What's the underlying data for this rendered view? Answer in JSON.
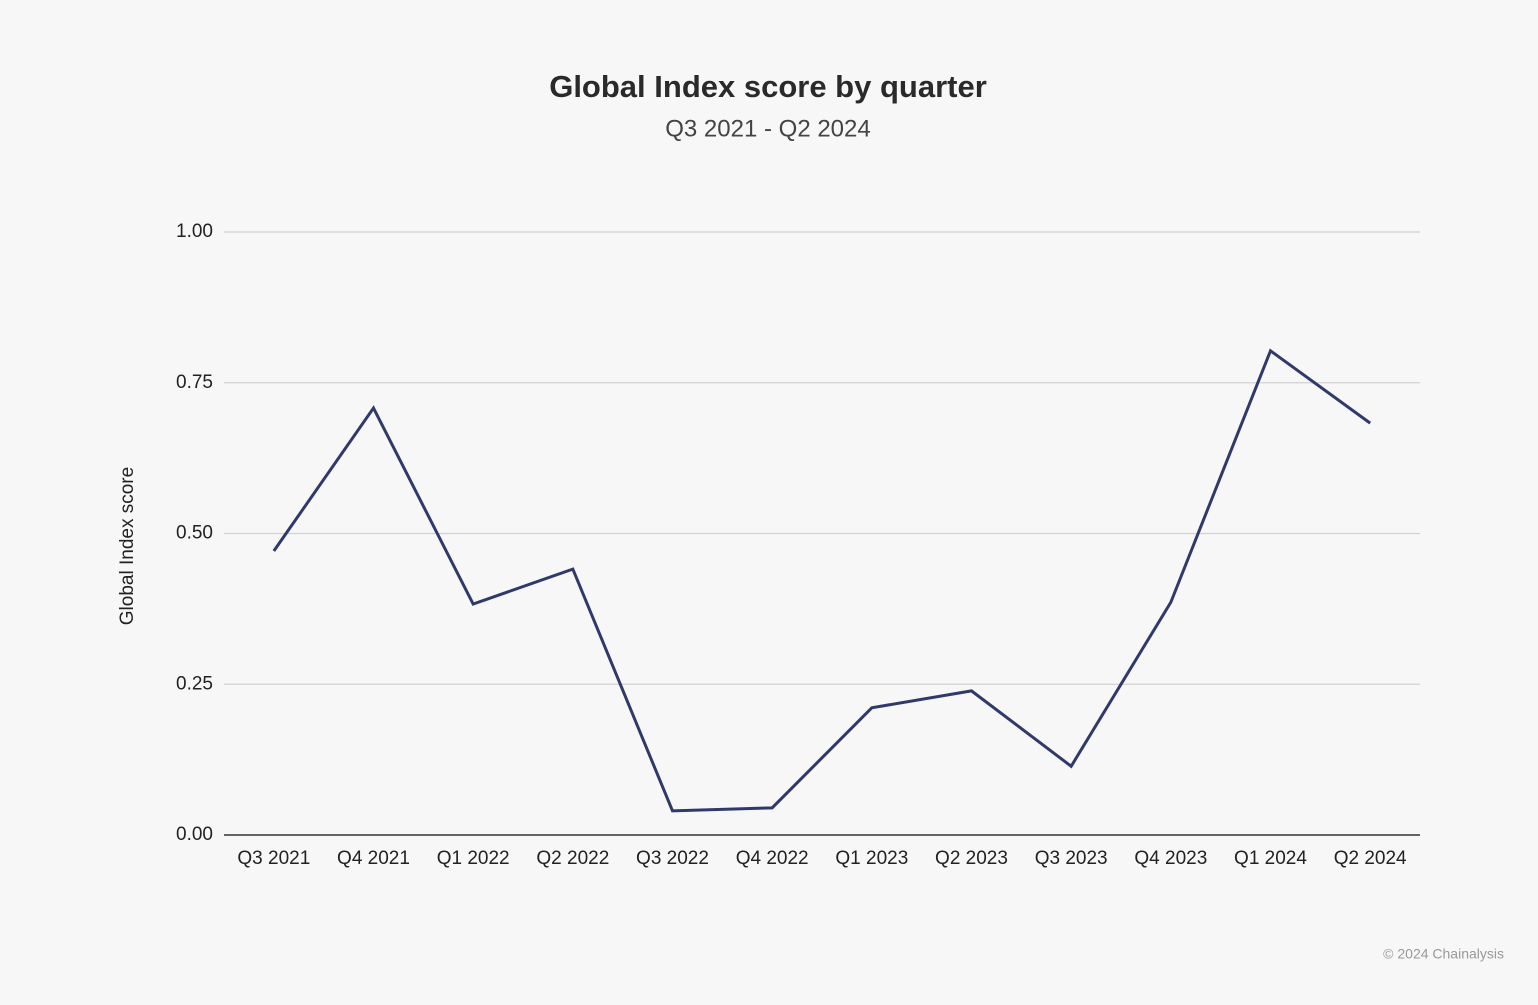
{
  "chart_data": {
    "type": "line",
    "title": "Global Index score by quarter",
    "subtitle": "Q3 2021 - Q2 2024",
    "y_label": "Global Index score",
    "footer": "© 2024 Chainalysis",
    "categories": [
      "Q3 2021",
      "Q4 2021",
      "Q1 2022",
      "Q2 2022",
      "Q3 2022",
      "Q4 2022",
      "Q1 2023",
      "Q2 2023",
      "Q3 2023",
      "Q4 2023",
      "Q1 2024",
      "Q2 2024"
    ],
    "series": [
      {
        "name": "Global Index score",
        "color": "#2f3a6b",
        "values": [
          0.471,
          0.708,
          0.383,
          0.441,
          0.04,
          0.045,
          0.211,
          0.239,
          0.114,
          0.386,
          0.803,
          0.683
        ]
      }
    ],
    "ylim": [
      0,
      1
    ],
    "yticks": [
      {
        "value": 0,
        "label": "0.00"
      },
      {
        "value": 0.25,
        "label": "0.25"
      },
      {
        "value": 0.5,
        "label": "0.50"
      },
      {
        "value": 0.75,
        "label": "0.75"
      },
      {
        "value": 1,
        "label": "1.00"
      }
    ],
    "grid": true,
    "legend": false
  }
}
